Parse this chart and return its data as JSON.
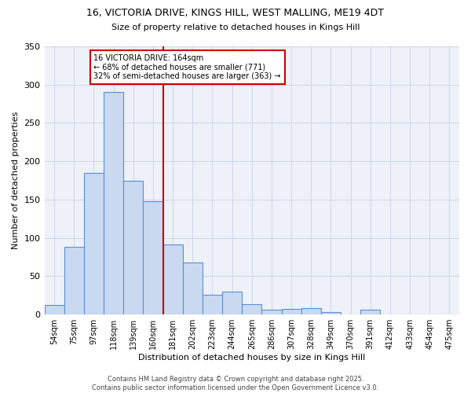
{
  "title_line1": "16, VICTORIA DRIVE, KINGS HILL, WEST MALLING, ME19 4DT",
  "title_line2": "Size of property relative to detached houses in Kings Hill",
  "xlabel": "Distribution of detached houses by size in Kings Hill",
  "ylabel": "Number of detached properties",
  "bar_labels": [
    "54sqm",
    "75sqm",
    "97sqm",
    "118sqm",
    "139sqm",
    "160sqm",
    "181sqm",
    "202sqm",
    "223sqm",
    "244sqm",
    "265sqm",
    "286sqm",
    "307sqm",
    "328sqm",
    "349sqm",
    "370sqm",
    "391sqm",
    "412sqm",
    "433sqm",
    "454sqm",
    "475sqm"
  ],
  "bar_values": [
    13,
    88,
    185,
    290,
    175,
    148,
    91,
    68,
    26,
    30,
    14,
    6,
    7,
    8,
    3,
    0,
    6,
    0,
    0,
    0,
    0
  ],
  "bar_color": "#c9d9f0",
  "bar_edge_color": "#5b8fd4",
  "vline_x_index": 5.5,
  "vline_color": "#cc0000",
  "annotation_text": "16 VICTORIA DRIVE: 164sqm\n← 68% of detached houses are smaller (771)\n32% of semi-detached houses are larger (363) →",
  "annotation_box_color": "#ffffff",
  "annotation_box_edge": "#cc0000",
  "grid_color": "#d0d8e8",
  "background_color": "#eef2f8",
  "ylim": [
    0,
    350
  ],
  "yticks": [
    0,
    50,
    100,
    150,
    200,
    250,
    300,
    350
  ],
  "title_fontsize": 9,
  "subtitle_fontsize": 8,
  "xlabel_fontsize": 8,
  "ylabel_fontsize": 8,
  "tick_fontsize": 7,
  "footer_fontsize": 6,
  "footer_text": "Contains HM Land Registry data © Crown copyright and database right 2025.\nContains public sector information licensed under the Open Government Licence v3.0."
}
